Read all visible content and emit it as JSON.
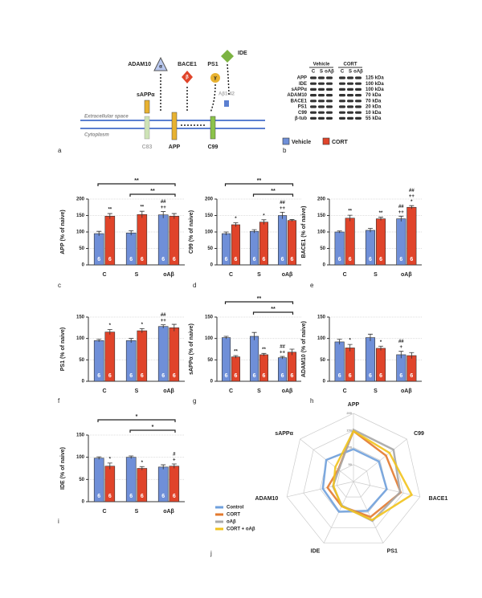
{
  "diagram": {
    "panel": "a",
    "enzymes": [
      "ADAM10",
      "BACE1",
      "PS1",
      "IDE"
    ],
    "symbols": [
      "α",
      "β",
      "γ"
    ],
    "fragments": [
      "sAPPα",
      "Aβ1-42"
    ],
    "compartments": [
      "Extracellular space",
      "Cytoplasm"
    ],
    "substrates": [
      "C83",
      "APP",
      "C99"
    ]
  },
  "blot": {
    "panel": "b",
    "lanes": [
      "C",
      "S",
      "oAβ",
      "C",
      "S",
      "oAβ"
    ],
    "proteins": [
      "APP",
      "IDE",
      "sAPPα",
      "ADAM10",
      "BACE1",
      "PS1",
      "C99",
      "β-tub"
    ],
    "sizes": [
      "125 kDa",
      "100 kDa",
      "100 kDa",
      "70 kDa",
      "70 kDa",
      "20 kDa",
      "10 kDa",
      "55 kDa"
    ]
  },
  "chart_data": [
    {
      "type": "bar",
      "panel": "c",
      "ylabel": "APP (% of naive)",
      "categories": [
        "C",
        "S",
        "oAβ"
      ],
      "ylim": [
        0,
        200
      ],
      "yticks": [
        0,
        50,
        100,
        150,
        200
      ],
      "series": [
        {
          "name": "Vehicle",
          "color": "#6f8fd8",
          "values": [
            95,
            97,
            152
          ],
          "errors": [
            7,
            7,
            10
          ],
          "n": [
            6,
            6,
            6
          ],
          "significance": [
            [],
            [],
            [
              "##",
              "++"
            ]
          ]
        },
        {
          "name": "CORT",
          "color": "#e0442a",
          "values": [
            148,
            153,
            148
          ],
          "errors": [
            8,
            10,
            8
          ],
          "n": [
            6,
            6,
            6
          ],
          "significance": [
            [
              "**"
            ],
            [
              "**"
            ],
            []
          ]
        }
      ],
      "brackets": [
        {
          "from": 0,
          "to": 2,
          "text": "**"
        },
        {
          "from": 1,
          "to": 2,
          "text": "**"
        }
      ]
    },
    {
      "type": "bar",
      "panel": "d",
      "ylabel": "C99 (% of naive)",
      "categories": [
        "C",
        "S",
        "oAβ"
      ],
      "ylim": [
        0,
        200
      ],
      "yticks": [
        0,
        50,
        100,
        150,
        200
      ],
      "series": [
        {
          "name": "Vehicle",
          "color": "#6f8fd8",
          "values": [
            95,
            102,
            150
          ],
          "errors": [
            5,
            5,
            10
          ],
          "n": [
            6,
            6,
            6
          ],
          "significance": [
            [],
            [],
            [
              "##",
              "++"
            ]
          ]
        },
        {
          "name": "CORT",
          "color": "#e0442a",
          "values": [
            122,
            130,
            135
          ],
          "errors": [
            6,
            7,
            3
          ],
          "n": [
            6,
            6,
            6
          ],
          "significance": [
            [
              "*"
            ],
            [
              "*"
            ],
            []
          ]
        }
      ],
      "brackets": [
        {
          "from": 0,
          "to": 2,
          "text": "**"
        },
        {
          "from": 1,
          "to": 2,
          "text": "**"
        }
      ]
    },
    {
      "type": "bar",
      "panel": "e",
      "ylabel": "BACE1 (% of naive)",
      "categories": [
        "C",
        "S",
        "oAβ"
      ],
      "ylim": [
        0,
        200
      ],
      "yticks": [
        0,
        50,
        100,
        150,
        200
      ],
      "series": [
        {
          "name": "Vehicle",
          "color": "#6f8fd8",
          "values": [
            100,
            105,
            140
          ],
          "errors": [
            3,
            6,
            8
          ],
          "n": [
            6,
            6,
            6
          ],
          "significance": [
            [],
            [],
            [
              "##",
              "++"
            ]
          ]
        },
        {
          "name": "CORT",
          "color": "#e0442a",
          "values": [
            142,
            140,
            175
          ],
          "errors": [
            9,
            5,
            5
          ],
          "n": [
            6,
            6,
            6
          ],
          "significance": [
            [
              "**"
            ],
            [
              "**"
            ],
            [
              "##",
              "++",
              "*"
            ]
          ]
        }
      ],
      "brackets": []
    },
    {
      "type": "bar",
      "panel": "f",
      "ylabel": "PS1 (% of naive)",
      "categories": [
        "C",
        "S",
        "oAβ"
      ],
      "ylim": [
        0,
        150
      ],
      "yticks": [
        0,
        50,
        100,
        150
      ],
      "series": [
        {
          "name": "Vehicle",
          "color": "#6f8fd8",
          "values": [
            95,
            95,
            128
          ],
          "errors": [
            3,
            5,
            4
          ],
          "n": [
            6,
            6,
            6
          ],
          "significance": [
            [],
            [],
            [
              "##",
              "++"
            ]
          ]
        },
        {
          "name": "CORT",
          "color": "#e0442a",
          "values": [
            115,
            118,
            125
          ],
          "errors": [
            6,
            5,
            8
          ],
          "n": [
            6,
            6,
            6
          ],
          "significance": [
            [
              "*"
            ],
            [
              "*"
            ],
            []
          ]
        }
      ],
      "brackets": []
    },
    {
      "type": "bar",
      "panel": "g",
      "ylabel": "sAPPα (% of naive)",
      "categories": [
        "C",
        "S",
        "oAβ"
      ],
      "ylim": [
        0,
        150
      ],
      "yticks": [
        0,
        50,
        100,
        150
      ],
      "series": [
        {
          "name": "Vehicle",
          "color": "#6f8fd8",
          "values": [
            102,
            105,
            55
          ],
          "errors": [
            3,
            9,
            3
          ],
          "n": [
            6,
            6,
            6
          ],
          "significance": [
            [],
            [],
            [
              "##",
              "++"
            ]
          ]
        },
        {
          "name": "CORT",
          "color": "#e0442a",
          "values": [
            57,
            62,
            68
          ],
          "errors": [
            3,
            3,
            7
          ],
          "n": [
            6,
            6,
            6
          ],
          "significance": [
            [
              "**"
            ],
            [
              "**"
            ],
            []
          ]
        }
      ],
      "brackets": [
        {
          "from": 0,
          "to": 2,
          "text": "**"
        },
        {
          "from": 1,
          "to": 2,
          "text": "**"
        }
      ]
    },
    {
      "type": "bar",
      "panel": "h",
      "ylabel": "ADAM10 (% of naive)",
      "categories": [
        "C",
        "S",
        "oAβ"
      ],
      "ylim": [
        0,
        150
      ],
      "yticks": [
        0,
        50,
        100,
        150
      ],
      "series": [
        {
          "name": "Vehicle",
          "color": "#6f8fd8",
          "values": [
            92,
            102,
            62
          ],
          "errors": [
            6,
            8,
            8
          ],
          "n": [
            6,
            6,
            6
          ],
          "significance": [
            [],
            [],
            [
              "##",
              "+"
            ]
          ]
        },
        {
          "name": "CORT",
          "color": "#e0442a",
          "values": [
            78,
            77,
            60
          ],
          "errors": [
            8,
            5,
            7
          ],
          "n": [
            6,
            6,
            6
          ],
          "significance": [
            [
              "*"
            ],
            [
              "*"
            ],
            []
          ]
        }
      ],
      "brackets": []
    },
    {
      "type": "bar",
      "panel": "i",
      "ylabel": "IDE (% of naive)",
      "categories": [
        "C",
        "S",
        "oAβ"
      ],
      "ylim": [
        0,
        150
      ],
      "yticks": [
        0,
        50,
        100,
        150
      ],
      "series": [
        {
          "name": "Vehicle",
          "color": "#6f8fd8",
          "values": [
            98,
            100,
            78
          ],
          "errors": [
            3,
            3,
            5
          ],
          "n": [
            6,
            6,
            6
          ],
          "significance": [
            [],
            [],
            []
          ]
        },
        {
          "name": "CORT",
          "color": "#e0442a",
          "values": [
            80,
            75,
            80
          ],
          "errors": [
            7,
            4,
            5
          ],
          "n": [
            6,
            6,
            6
          ],
          "significance": [
            [
              "*"
            ],
            [
              "*"
            ],
            [
              "#",
              "+"
            ]
          ]
        }
      ],
      "brackets": [
        {
          "from": 0,
          "to": 2,
          "text": "*"
        },
        {
          "from": 1,
          "to": 2,
          "text": "*"
        }
      ]
    },
    {
      "type": "radar",
      "panel": "j",
      "categories": [
        "APP",
        "C99",
        "BACE1",
        "PS1",
        "IDE",
        "ADAM10",
        "sAPPα"
      ],
      "rlim": [
        0,
        200
      ],
      "rticks": [
        50,
        100,
        150,
        200
      ],
      "series": [
        {
          "name": "Control",
          "color": "#6fa0dc",
          "values": [
            95,
            95,
            100,
            95,
            98,
            92,
            102
          ]
        },
        {
          "name": "CORT",
          "color": "#e37a2e",
          "values": [
            148,
            122,
            142,
            115,
            80,
            78,
            57
          ]
        },
        {
          "name": "oAβ",
          "color": "#a9a9a9",
          "values": [
            152,
            150,
            140,
            128,
            78,
            62,
            55
          ]
        },
        {
          "name": "CORT + oAβ",
          "color": "#f2c31c",
          "values": [
            148,
            135,
            175,
            125,
            80,
            60,
            68
          ]
        }
      ]
    }
  ]
}
